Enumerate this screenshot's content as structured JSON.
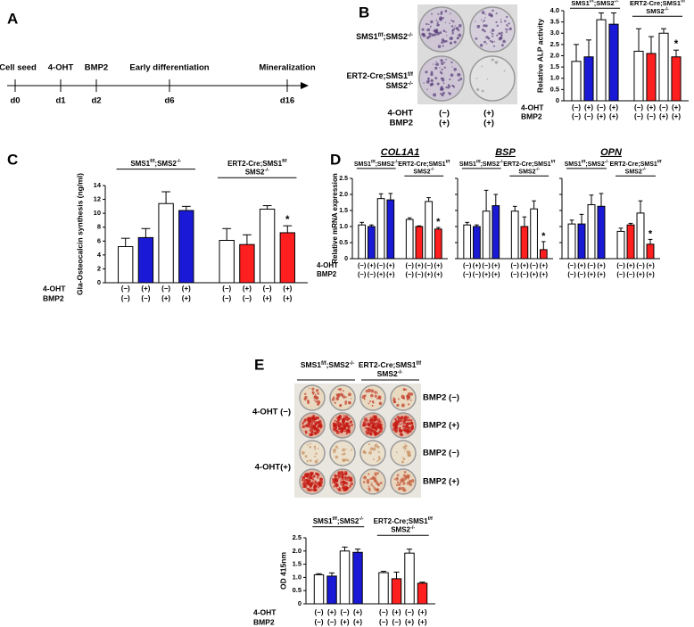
{
  "panels": [
    "A",
    "B",
    "C",
    "D",
    "E"
  ],
  "timeline": {
    "events": [
      "Cell seed",
      "4-OHT",
      "BMP2",
      "Early differentiation",
      "Mineralization"
    ],
    "days": [
      "d0",
      "d1",
      "d2",
      "d6",
      "d16"
    ]
  },
  "genotypes": [
    [
      [
        "SMS1",
        "f/f",
        ";SMS2",
        "-/-"
      ]
    ],
    [
      [
        "ERT2-Cre;SMS1",
        "f/f"
      ],
      [
        "SMS2",
        "-/-"
      ]
    ]
  ],
  "treatments": [
    {
      "name": "4-OHT",
      "labels": [
        "(−)",
        "(+)",
        "(−)",
        "(+)",
        "(−)",
        "(+)",
        "(−)",
        "(+)"
      ]
    },
    {
      "name": "BMP2",
      "labels": [
        "(−)",
        "(−)",
        "(+)",
        "(+)",
        "(−)",
        "(−)",
        "(+)",
        "(+)"
      ]
    }
  ],
  "plate_b": {
    "treatments": [
      {
        "name": "4-OHT",
        "labels": [
          "(−)",
          "(+)"
        ]
      },
      {
        "name": "BMP2",
        "labels": [
          "(+)",
          "(+)"
        ]
      }
    ]
  },
  "plate_e": {
    "row_groups": [
      "4-OHT (−)",
      "4-OHT(+)"
    ],
    "rows": [
      "BMP2 (−)",
      "BMP2 (+)",
      "BMP2 (−)",
      "BMP2 (+)"
    ]
  },
  "chart_data": [
    {
      "type": "bar",
      "ylabel": "Relative ALP activity",
      "values": [
        1.75,
        1.95,
        3.6,
        3.4,
        2.2,
        2.1,
        3.0,
        1.95
      ],
      "errors": [
        0.75,
        0.75,
        0.3,
        0.5,
        1.0,
        0.75,
        0.2,
        0.3
      ],
      "colors": [
        "#ffffff",
        "#1a1ad6",
        "#ffffff",
        "#1a1ad6",
        "#ffffff",
        "#ff1f1f",
        "#ffffff",
        "#ff1f1f"
      ],
      "significance": [
        null,
        null,
        null,
        null,
        null,
        null,
        null,
        "*"
      ],
      "ylim": [
        0,
        4
      ],
      "yticks": [
        0,
        0.5,
        {
          "value": 1,
          "label": "1.0"
        },
        1.5,
        {
          "value": 2,
          "label": "2.0"
        },
        2.5,
        {
          "value": 3,
          "label": "3.0"
        },
        3.5,
        {
          "value": 4,
          "label": "4.0"
        }
      ]
    },
    {
      "type": "bar",
      "ylabel": "Gla-Osteocalcin synthesis (ng/ml)",
      "values": [
        5.2,
        6.5,
        11.4,
        10.4,
        6.1,
        5.5,
        10.6,
        7.2
      ],
      "errors": [
        1.2,
        1.3,
        1.7,
        0.6,
        1.7,
        1.4,
        0.5,
        1.0
      ],
      "colors": [
        "#ffffff",
        "#1a1ad6",
        "#ffffff",
        "#1a1ad6",
        "#ffffff",
        "#ff1f1f",
        "#ffffff",
        "#ff1f1f"
      ],
      "significance": [
        null,
        null,
        null,
        null,
        null,
        null,
        null,
        "*"
      ],
      "ylim": [
        0,
        14
      ],
      "yticks": [
        0,
        2,
        4,
        6,
        8,
        10,
        12,
        14
      ]
    },
    {
      "type": "bar",
      "title": "COL1A1",
      "ylabel": "Relative mRNA expression",
      "values": [
        1.05,
        1.0,
        1.87,
        1.83,
        1.22,
        1.0,
        1.78,
        0.92
      ],
      "errors": [
        0.08,
        0.05,
        0.15,
        0.2,
        0.05,
        0.02,
        0.12,
        0.05
      ],
      "colors": [
        "#ffffff",
        "#1a1ad6",
        "#ffffff",
        "#1a1ad6",
        "#ffffff",
        "#ff1f1f",
        "#ffffff",
        "#ff1f1f"
      ],
      "significance": [
        null,
        null,
        null,
        null,
        null,
        null,
        null,
        "*"
      ],
      "ylim": [
        0,
        2.5
      ],
      "yticks": [
        0,
        0.5,
        {
          "value": 1,
          "label": "1.0"
        },
        1.5,
        {
          "value": 2,
          "label": "2.0"
        },
        2.5
      ]
    },
    {
      "type": "bar",
      "title": "BSP",
      "values": [
        1.05,
        1.0,
        1.48,
        1.65,
        1.48,
        1.0,
        1.55,
        0.28
      ],
      "errors": [
        0.08,
        0.05,
        0.65,
        0.35,
        0.15,
        0.3,
        0.25,
        0.25
      ],
      "colors": [
        "#ffffff",
        "#1a1ad6",
        "#ffffff",
        "#1a1ad6",
        "#ffffff",
        "#ff1f1f",
        "#ffffff",
        "#ff1f1f"
      ],
      "significance": [
        null,
        null,
        null,
        null,
        null,
        null,
        null,
        "*"
      ],
      "ylim": [
        0,
        2.5
      ]
    },
    {
      "type": "bar",
      "title": "OPN",
      "values": [
        1.08,
        1.08,
        1.68,
        1.63,
        0.85,
        1.05,
        1.42,
        0.45
      ],
      "errors": [
        0.12,
        0.3,
        0.3,
        0.4,
        0.1,
        0.05,
        0.38,
        0.15
      ],
      "colors": [
        "#ffffff",
        "#1a1ad6",
        "#ffffff",
        "#1a1ad6",
        "#ffffff",
        "#ff1f1f",
        "#ffffff",
        "#ff1f1f"
      ],
      "significance": [
        null,
        null,
        null,
        null,
        null,
        null,
        null,
        "*"
      ],
      "ylim": [
        0,
        2.5
      ]
    },
    {
      "type": "bar",
      "ylabel": "OD 415nm",
      "values": [
        1.1,
        1.05,
        2.0,
        1.95,
        1.18,
        0.95,
        1.92,
        0.78
      ],
      "errors": [
        0.04,
        0.12,
        0.15,
        0.12,
        0.05,
        0.25,
        0.15,
        0.04
      ],
      "colors": [
        "#ffffff",
        "#1a1ad6",
        "#ffffff",
        "#1a1ad6",
        "#ffffff",
        "#ff1f1f",
        "#ffffff",
        "#ff1f1f"
      ],
      "ylim": [
        0,
        2.5
      ],
      "yticks": [
        0,
        0.5,
        {
          "value": 1,
          "label": "1.0"
        },
        1.5,
        {
          "value": 2,
          "label": "2.0"
        },
        2.5
      ]
    }
  ]
}
